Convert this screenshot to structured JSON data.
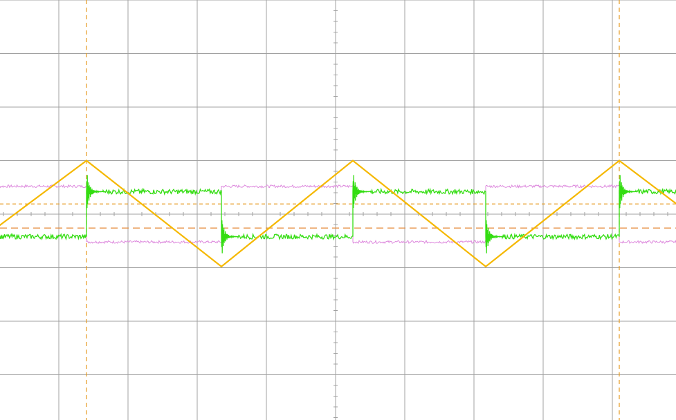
{
  "chart_data": {
    "type": "line",
    "title": "",
    "xlabel": "",
    "ylabel": "",
    "grid": true,
    "grid_divisions": {
      "x": 10,
      "y": 8
    },
    "xlim": [
      -5.0,
      5.0
    ],
    "ylim": [
      -4.0,
      4.0
    ],
    "colors": {
      "background": "#ffffff",
      "grid": "#a0a0a0",
      "triangle": "#f5b800",
      "square": "#33dd11",
      "inverted_square": "#dd88dd",
      "cursor": "#e69a20",
      "reference": "#e68a3a"
    },
    "series": [
      {
        "key": "triangle",
        "x": [
          -5.0,
          -3.6,
          -1.65,
          0.25,
          2.17,
          4.1,
          5.0
        ],
        "y": [
          -0.35,
          1.0,
          -0.98,
          1.0,
          -0.98,
          1.0,
          0.12
        ]
      },
      {
        "key": "square",
        "transitions": [
          -3.6,
          -1.65,
          0.25,
          2.17,
          4.1
        ],
        "high": 0.42,
        "low": -0.42,
        "start_level": "low",
        "ringing": true
      },
      {
        "key": "inverted_square",
        "transitions": [
          -3.6,
          -1.65,
          0.25,
          2.17,
          4.1
        ],
        "high": 0.52,
        "low": -0.52,
        "start_level": "high"
      }
    ],
    "cursors": {
      "vertical": [
        -3.6,
        4.1
      ],
      "horizontal": [
        0.19
      ]
    },
    "reference_lines": [
      -0.26
    ]
  }
}
